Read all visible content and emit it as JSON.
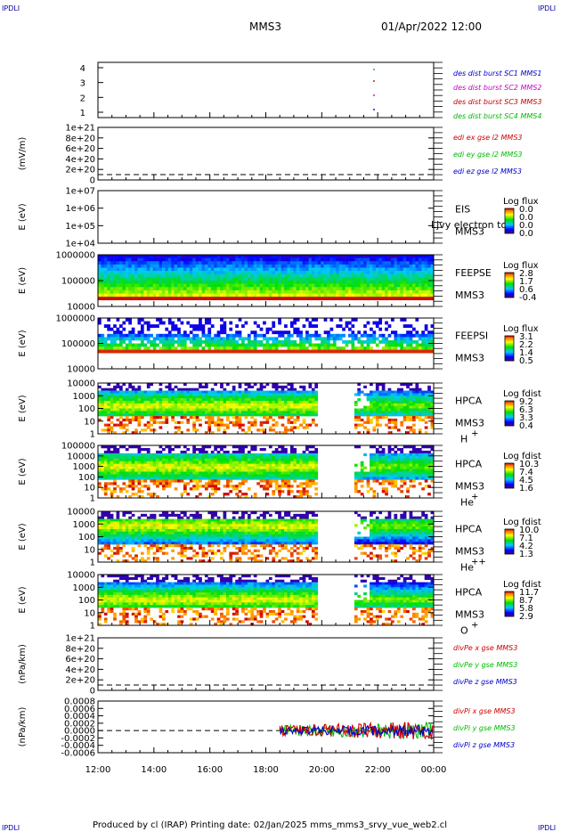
{
  "header": {
    "corner_left_top": "IPDLI",
    "corner_right_top": "IPDLI",
    "corner_left_bottom": "IPDLI",
    "corner_right_bottom": "IPDLI",
    "mission": "MMS3",
    "datetime": "01/Apr/2022 12:00"
  },
  "colors": {
    "blue": "#0000cc",
    "magenta": "#cc00cc",
    "red": "#cc0000",
    "green": "#00bb00"
  },
  "chart_data": [
    {
      "type": "scatter",
      "id": "burst",
      "x_ticks": [
        "12:00",
        "14:00",
        "16:00",
        "18:00",
        "20:00",
        "22:00",
        "00:00"
      ],
      "y_ticks": [
        "4",
        "3",
        "2",
        "1"
      ],
      "legend": [
        "des dist burst SC1 MMS1",
        "des dist burst SC2 MMS2",
        "des dist burst SC3 MMS3",
        "des dist burst SC4 MMS4"
      ],
      "marker_time": "21:50"
    },
    {
      "type": "line",
      "id": "edi",
      "ylabel": "(mV/m)",
      "y_ticks": [
        "1e+21",
        "8e+20",
        "6e+20",
        "4e+20",
        "2e+20",
        "0"
      ],
      "legend": [
        "edi ex gse l2 MMS3",
        "edi ey gse l2 MMS3",
        "edi ez gse l2 MMS3"
      ]
    },
    {
      "type": "heatmap",
      "id": "eis",
      "ylabel": "E (eV)",
      "y_ticks": [
        "1e+07",
        "1e+06",
        "1e+05",
        "1e+04"
      ],
      "instrument": "EIS",
      "overlay_text": "Ljvy electron to",
      "spacecraft": "MMS3",
      "cbar_title": "Log flux",
      "cbar_values": [
        "0.0",
        "0.0",
        "0.0",
        "0.0"
      ]
    },
    {
      "type": "heatmap",
      "id": "feepse",
      "ylabel": "E (eV)",
      "y_ticks": [
        "1000000",
        "100000",
        "10000"
      ],
      "instrument": "FEEPSE",
      "spacecraft": "MMS3",
      "cbar_title": "Log flux",
      "cbar_values": [
        "2.8",
        "1.7",
        "0.6",
        "-0.4"
      ]
    },
    {
      "type": "heatmap",
      "id": "feepsi",
      "ylabel": "E (eV)",
      "y_ticks": [
        "1000000",
        "100000",
        "10000"
      ],
      "instrument": "FEEPSI",
      "spacecraft": "MMS3",
      "cbar_title": "Log flux",
      "cbar_values": [
        "3.1",
        "2.2",
        "1.4",
        "0.5"
      ]
    },
    {
      "type": "heatmap",
      "id": "hpca_h",
      "ylabel": "E (eV)",
      "y_ticks": [
        "10000",
        "1000",
        "100",
        "10",
        "1"
      ],
      "instrument": "HPCA",
      "spacecraft": "MMS3",
      "species": "H",
      "species_charge": "+",
      "cbar_title": "Log fdist",
      "cbar_values": [
        "9.2",
        "6.3",
        "3.3",
        "0.4"
      ]
    },
    {
      "type": "heatmap",
      "id": "hpca_he",
      "ylabel": "E (eV)",
      "y_ticks": [
        "100000",
        "10000",
        "1000",
        "100",
        "10",
        "1"
      ],
      "instrument": "HPCA",
      "spacecraft": "MMS3",
      "species": "He",
      "species_charge": "+",
      "cbar_title": "Log fdist",
      "cbar_values": [
        "10.3",
        "7.4",
        "4.5",
        "1.6"
      ]
    },
    {
      "type": "heatmap",
      "id": "hpca_hepp",
      "ylabel": "E (eV)",
      "y_ticks": [
        "10000",
        "1000",
        "100",
        "10",
        "1"
      ],
      "instrument": "HPCA",
      "spacecraft": "MMS3",
      "species": "He",
      "species_charge": "++",
      "cbar_title": "Log fdist",
      "cbar_values": [
        "10.0",
        "7.1",
        "4.2",
        "1.3"
      ]
    },
    {
      "type": "heatmap",
      "id": "hpca_o",
      "ylabel": "E (eV)",
      "y_ticks": [
        "10000",
        "1000",
        "100",
        "10",
        "1"
      ],
      "instrument": "HPCA",
      "spacecraft": "MMS3",
      "species": "O",
      "species_charge": "+",
      "cbar_title": "Log fdist",
      "cbar_values": [
        "11.7",
        "8.7",
        "5.8",
        "2.9"
      ]
    },
    {
      "type": "line",
      "id": "divpe",
      "ylabel": "(nPa/km)",
      "y_ticks": [
        "1e+21",
        "8e+20",
        "6e+20",
        "4e+20",
        "2e+20",
        "0"
      ],
      "legend": [
        "divPe x gse MMS3",
        "divPe y gse MMS3",
        "divPe z gse MMS3"
      ]
    },
    {
      "type": "line",
      "id": "divpi",
      "ylabel": "(nPa/km)",
      "y_ticks": [
        "0.0008",
        "0.0006",
        "0.0004",
        "0.0002",
        "0.0000",
        "-0.0002",
        "-0.0004",
        "-0.0006"
      ],
      "legend": [
        "divPi x gse MMS3",
        "divPi y gse MMS3",
        "divPi z gse MMS3"
      ],
      "data_start": "18:30"
    }
  ],
  "footer": {
    "text": "Produced by cl (IRAP)   Printing date: 02/Jan/2025   mms_mms3_srvy_vue_web2.cl"
  }
}
